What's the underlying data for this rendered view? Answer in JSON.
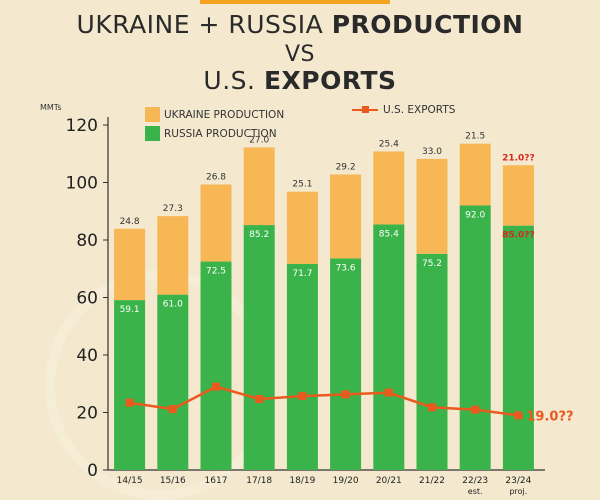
{
  "header": {
    "line1_plain": "UKRAINE + RUSSIA ",
    "line1_bold": "PRODUCTION",
    "line2": "VS",
    "line3_plain": "U.S. ",
    "line3_bold": "EXPORTS"
  },
  "units_label": "MMTs",
  "legend": {
    "ukraine": "UKRAINE PRODUCTION",
    "russia": "RUSSIA PRODUCTION",
    "us": "U.S. EXPORTS"
  },
  "colors": {
    "ukraine": "#f8b755",
    "russia": "#3ab44a",
    "us": "#ea5a1e",
    "projected_label": "#d42a1e"
  },
  "chart_data": {
    "type": "bar",
    "stacked": true,
    "categories": [
      "14/15",
      "15/16",
      "1617",
      "17/18",
      "18/19",
      "19/20",
      "20/21",
      "21/22",
      "22/23",
      "23/24"
    ],
    "category_notes": [
      "",
      "",
      "",
      "",
      "",
      "",
      "",
      "",
      "est.",
      "proj."
    ],
    "ylim": [
      0,
      120
    ],
    "yticks": [
      0,
      20,
      40,
      60,
      80,
      100,
      120
    ],
    "ylabel": "MMTs",
    "grid": false,
    "series": [
      {
        "name": "RUSSIA PRODUCTION",
        "values": [
          59.1,
          61.0,
          72.5,
          85.2,
          71.7,
          73.6,
          85.4,
          75.2,
          92.0,
          85.0
        ],
        "labels": [
          "59.1",
          "61.0",
          "72.5",
          "85.2",
          "71.7",
          "73.6",
          "85.4",
          "75.2",
          "92.0",
          "85.0??"
        ]
      },
      {
        "name": "UKRAINE PRODUCTION",
        "values": [
          24.8,
          27.3,
          26.8,
          27.0,
          25.1,
          29.2,
          25.4,
          33.0,
          21.5,
          21.0
        ],
        "labels": [
          "24.8",
          "27.3",
          "26.8",
          "27.0",
          "25.1",
          "29.2",
          "25.4",
          "33.0",
          "21.5",
          "21.0??"
        ]
      },
      {
        "name": "U.S. EXPORTS",
        "type": "line",
        "values": [
          23.4,
          21.2,
          29.0,
          24.7,
          25.7,
          26.3,
          26.9,
          21.8,
          21.0,
          19.0
        ],
        "labels": [
          "",
          "",
          "",
          "",
          "",
          "",
          "",
          "",
          "",
          "19.0??"
        ]
      }
    ]
  }
}
